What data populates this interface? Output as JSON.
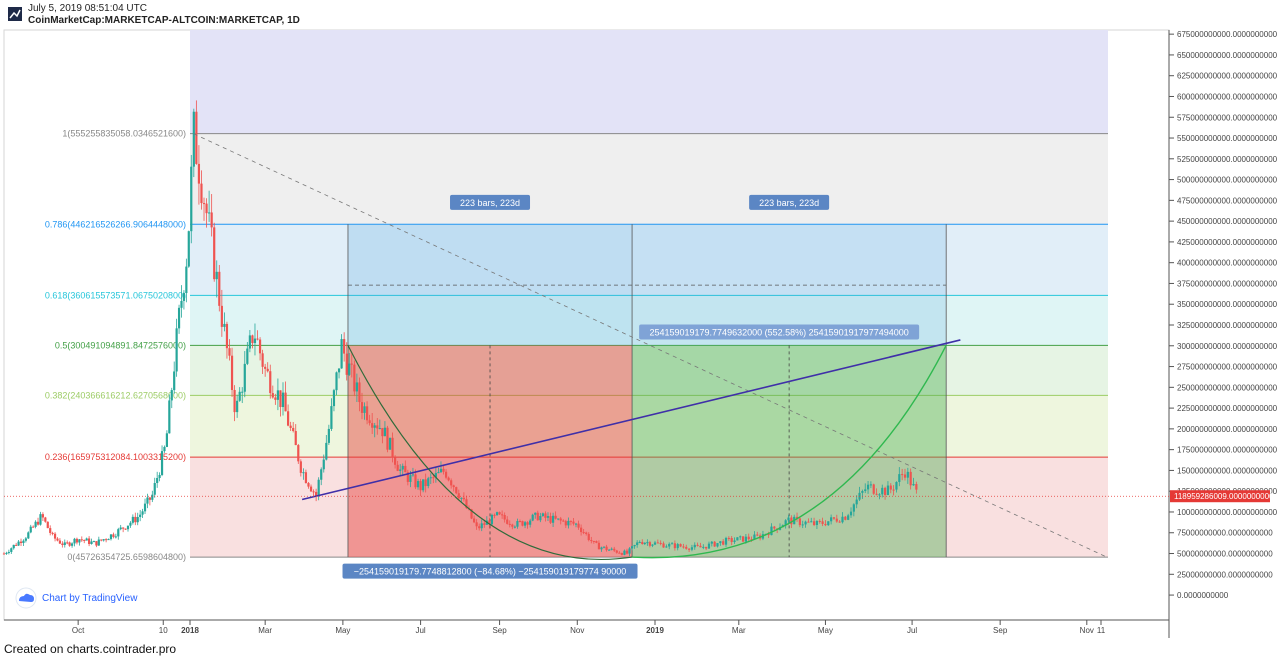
{
  "header": {
    "timestamp": "July 5, 2019 08:51:04 UTC",
    "symbol": "CoinMarketCap:MARKETCAP-ALTCOIN:MARKETCAP, 1D"
  },
  "footer": {
    "text": "Created on charts.cointrader.pro"
  },
  "watermark": {
    "text": "Chart by TradingView"
  },
  "colors": {
    "candle_up": "#26a69a",
    "candle_down": "#ef5350",
    "trend_line": "#3f2fa8",
    "purple_line": "#7b1fa2",
    "price_line": "#e53935"
  },
  "chart_data": {
    "type": "candlestick",
    "x_ticks": [
      "Oct",
      "10",
      "2018",
      "Mar",
      "May",
      "Jul",
      "Sep",
      "Nov",
      "2019",
      "Mar",
      "May",
      "Jul",
      "Sep",
      "Nov",
      "11"
    ],
    "y_ticks": [
      "675000000000.0000000000",
      "650000000000.0000000000",
      "625000000000.0000000000",
      "600000000000.0000000000",
      "575000000000.0000000000",
      "550000000000.0000000000",
      "525000000000.0000000000",
      "500000000000.0000000000",
      "475000000000.0000000000",
      "450000000000.0000000000",
      "425000000000.0000000000",
      "400000000000.0000000000",
      "375000000000.0000000000",
      "350000000000.0000000000",
      "325000000000.0000000000",
      "300000000000.0000000000",
      "275000000000.0000000000",
      "250000000000.0000000000",
      "225000000000.0000000000",
      "200000000000.0000000000",
      "175000000000.0000000000",
      "150000000000.0000000000",
      "125000000000.0000000000",
      "100000000000.0000000000",
      "75000000000.0000000000",
      "50000000000.0000000000",
      "25000000000.0000000000",
      "0.0000000000"
    ],
    "y_range": [
      -30000000000,
      680000000000
    ],
    "current_price_label": "118959286009.0000000000",
    "current_price": 118959286009,
    "fib_levels": [
      {
        "label": "1(555255835058.0346521600)",
        "value": 555255835058,
        "color": "#888888"
      },
      {
        "label": "0.786(446216526266.9064448000)",
        "value": 446216526266,
        "color": "#2196f3"
      },
      {
        "label": "0.618(360615573571.0675020800)",
        "value": 360615573571,
        "color": "#26c6da"
      },
      {
        "label": "0.5(300491094891.8472576000)",
        "value": 300491094891,
        "color": "#43a047"
      },
      {
        "label": "0.382(240366616212.6270568000)",
        "value": 240366616212,
        "color": "#9ccc65"
      },
      {
        "label": "0.236(165975312084.1003315200)",
        "value": 165975312084,
        "color": "#e53935"
      },
      {
        "label": "0(45726354725.6598604800)",
        "value": 45726354725,
        "color": "#888888"
      }
    ],
    "bars_labels": [
      "223 bars, 223d",
      "223 bars, 223d"
    ],
    "drop_label": "−254159019179.7748812800 (−84.68%) −254159019179774 90000",
    "rise_label": "254159019179.7749632000 (552.58%) 25415901917977494000",
    "price_path": [
      [
        "2017-08-01",
        50
      ],
      [
        "2017-08-20",
        72
      ],
      [
        "2017-09-01",
        95
      ],
      [
        "2017-09-10",
        70
      ],
      [
        "2017-09-20",
        60
      ],
      [
        "2017-10-01",
        68
      ],
      [
        "2017-10-15",
        62
      ],
      [
        "2017-11-01",
        75
      ],
      [
        "2017-11-20",
        95
      ],
      [
        "2017-12-01",
        120
      ],
      [
        "2017-12-12",
        180
      ],
      [
        "2017-12-22",
        320
      ],
      [
        "2017-12-30",
        420
      ],
      [
        "2018-01-04",
        555
      ],
      [
        "2018-01-10",
        500
      ],
      [
        "2018-01-20",
        400
      ],
      [
        "2018-02-06",
        220
      ],
      [
        "2018-02-20",
        320
      ],
      [
        "2018-03-01",
        270
      ],
      [
        "2018-03-15",
        230
      ],
      [
        "2018-03-30",
        150
      ],
      [
        "2018-04-10",
        120
      ],
      [
        "2018-04-20",
        200
      ],
      [
        "2018-04-30",
        300
      ],
      [
        "2018-05-15",
        230
      ],
      [
        "2018-06-01",
        200
      ],
      [
        "2018-06-15",
        150
      ],
      [
        "2018-07-01",
        130
      ],
      [
        "2018-07-20",
        150
      ],
      [
        "2018-08-01",
        120
      ],
      [
        "2018-08-14",
        80
      ],
      [
        "2018-08-30",
        95
      ],
      [
        "2018-09-15",
        85
      ],
      [
        "2018-10-01",
        95
      ],
      [
        "2018-10-15",
        90
      ],
      [
        "2018-11-01",
        85
      ],
      [
        "2018-11-15",
        60
      ],
      [
        "2018-11-25",
        55
      ],
      [
        "2018-12-10",
        50
      ],
      [
        "2018-12-20",
        65
      ],
      [
        "2019-01-10",
        60
      ],
      [
        "2019-02-01",
        57
      ],
      [
        "2019-02-20",
        65
      ],
      [
        "2019-03-15",
        70
      ],
      [
        "2019-04-05",
        90
      ],
      [
        "2019-04-25",
        85
      ],
      [
        "2019-05-15",
        95
      ],
      [
        "2019-05-30",
        130
      ],
      [
        "2019-06-15",
        125
      ],
      [
        "2019-06-26",
        150
      ],
      [
        "2019-07-05",
        119
      ]
    ]
  }
}
